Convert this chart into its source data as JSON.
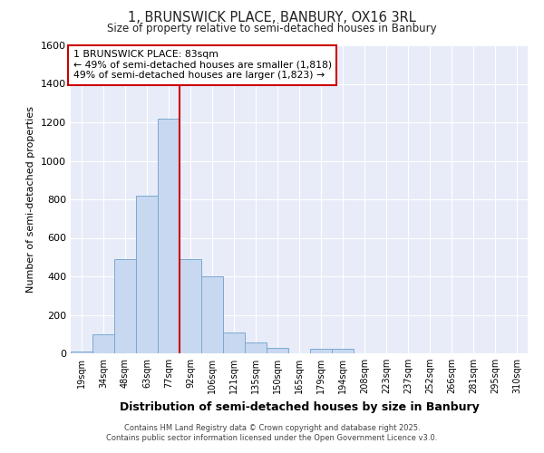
{
  "title_line1": "1, BRUNSWICK PLACE, BANBURY, OX16 3RL",
  "title_line2": "Size of property relative to semi-detached houses in Banbury",
  "xlabel": "Distribution of semi-detached houses by size in Banbury",
  "ylabel": "Number of semi-detached properties",
  "categories": [
    "19sqm",
    "34sqm",
    "48sqm",
    "63sqm",
    "77sqm",
    "92sqm",
    "106sqm",
    "121sqm",
    "135sqm",
    "150sqm",
    "165sqm",
    "179sqm",
    "194sqm",
    "208sqm",
    "223sqm",
    "237sqm",
    "252sqm",
    "266sqm",
    "281sqm",
    "295sqm",
    "310sqm"
  ],
  "values": [
    10,
    100,
    490,
    820,
    1220,
    490,
    400,
    110,
    55,
    30,
    0,
    25,
    25,
    0,
    0,
    0,
    0,
    0,
    0,
    0,
    0
  ],
  "bar_color": "#c8d8f0",
  "bar_edgecolor": "#7aaad0",
  "vline_index": 4,
  "vline_color": "#cc0000",
  "annotation_text": "1 BRUNSWICK PLACE: 83sqm\n← 49% of semi-detached houses are smaller (1,818)\n49% of semi-detached houses are larger (1,823) →",
  "ylim": [
    0,
    1600
  ],
  "yticks": [
    0,
    200,
    400,
    600,
    800,
    1000,
    1200,
    1400,
    1600
  ],
  "footer_line1": "Contains HM Land Registry data © Crown copyright and database right 2025.",
  "footer_line2": "Contains public sector information licensed under the Open Government Licence v3.0.",
  "bg_color": "#ffffff",
  "plot_bg_color": "#e8ecf8",
  "grid_color": "#ffffff"
}
